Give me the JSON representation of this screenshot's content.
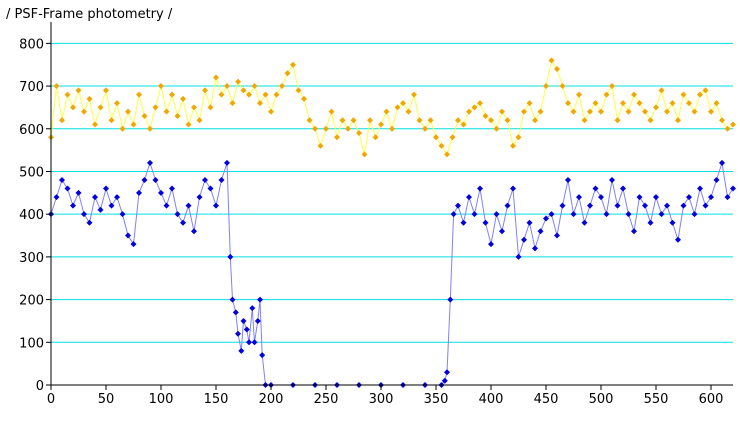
{
  "chart_data": {
    "type": "line",
    "title": "/ PSF-Frame photometry /",
    "xlim": [
      0,
      620
    ],
    "ylim": [
      0,
      850
    ],
    "x_ticks": [
      0,
      50,
      100,
      150,
      200,
      250,
      300,
      350,
      400,
      450,
      500,
      550,
      600
    ],
    "y_ticks": [
      0,
      100,
      200,
      300,
      400,
      500,
      600,
      700,
      800
    ],
    "grid": "horizontal",
    "colors": {
      "gridline": "#00e0e0",
      "yellow_line": "#ffff40",
      "yellow_marker": "#f0a800",
      "blue_line": "#8080ff",
      "blue_marker": "#0000e0"
    },
    "series": [
      {
        "color_key": "yellow",
        "points": [
          [
            0,
            580
          ],
          [
            5,
            700
          ],
          [
            10,
            620
          ],
          [
            15,
            680
          ],
          [
            20,
            650
          ],
          [
            25,
            690
          ],
          [
            30,
            640
          ],
          [
            35,
            670
          ],
          [
            40,
            610
          ],
          [
            45,
            650
          ],
          [
            50,
            690
          ],
          [
            55,
            620
          ],
          [
            60,
            660
          ],
          [
            65,
            600
          ],
          [
            70,
            640
          ],
          [
            75,
            610
          ],
          [
            80,
            680
          ],
          [
            85,
            630
          ],
          [
            90,
            600
          ],
          [
            95,
            650
          ],
          [
            100,
            700
          ],
          [
            105,
            640
          ],
          [
            110,
            680
          ],
          [
            115,
            630
          ],
          [
            120,
            670
          ],
          [
            125,
            610
          ],
          [
            130,
            650
          ],
          [
            135,
            620
          ],
          [
            140,
            690
          ],
          [
            145,
            650
          ],
          [
            150,
            720
          ],
          [
            155,
            680
          ],
          [
            160,
            700
          ],
          [
            165,
            660
          ],
          [
            170,
            710
          ],
          [
            175,
            690
          ],
          [
            180,
            680
          ],
          [
            185,
            700
          ],
          [
            190,
            660
          ],
          [
            195,
            680
          ],
          [
            200,
            640
          ],
          [
            205,
            680
          ],
          [
            210,
            700
          ],
          [
            215,
            730
          ],
          [
            220,
            750
          ],
          [
            225,
            690
          ],
          [
            230,
            670
          ],
          [
            235,
            620
          ],
          [
            240,
            600
          ],
          [
            245,
            560
          ],
          [
            250,
            600
          ],
          [
            255,
            640
          ],
          [
            260,
            580
          ],
          [
            265,
            620
          ],
          [
            270,
            600
          ],
          [
            275,
            620
          ],
          [
            280,
            590
          ],
          [
            285,
            540
          ],
          [
            290,
            620
          ],
          [
            295,
            580
          ],
          [
            300,
            610
          ],
          [
            305,
            640
          ],
          [
            310,
            600
          ],
          [
            315,
            650
          ],
          [
            320,
            660
          ],
          [
            325,
            640
          ],
          [
            330,
            680
          ],
          [
            335,
            620
          ],
          [
            340,
            600
          ],
          [
            345,
            620
          ],
          [
            350,
            580
          ],
          [
            355,
            560
          ],
          [
            360,
            540
          ],
          [
            365,
            580
          ],
          [
            370,
            620
          ],
          [
            375,
            610
          ],
          [
            380,
            640
          ],
          [
            385,
            650
          ],
          [
            390,
            660
          ],
          [
            395,
            630
          ],
          [
            400,
            620
          ],
          [
            405,
            600
          ],
          [
            410,
            640
          ],
          [
            415,
            620
          ],
          [
            420,
            560
          ],
          [
            425,
            580
          ],
          [
            430,
            640
          ],
          [
            435,
            660
          ],
          [
            440,
            620
          ],
          [
            445,
            640
          ],
          [
            450,
            700
          ],
          [
            455,
            760
          ],
          [
            460,
            740
          ],
          [
            465,
            700
          ],
          [
            470,
            660
          ],
          [
            475,
            640
          ],
          [
            480,
            680
          ],
          [
            485,
            620
          ],
          [
            490,
            640
          ],
          [
            495,
            660
          ],
          [
            500,
            640
          ],
          [
            505,
            680
          ],
          [
            510,
            700
          ],
          [
            515,
            620
          ],
          [
            520,
            660
          ],
          [
            525,
            640
          ],
          [
            530,
            680
          ],
          [
            535,
            660
          ],
          [
            540,
            640
          ],
          [
            545,
            620
          ],
          [
            550,
            650
          ],
          [
            555,
            690
          ],
          [
            560,
            640
          ],
          [
            565,
            660
          ],
          [
            570,
            620
          ],
          [
            575,
            680
          ],
          [
            580,
            660
          ],
          [
            585,
            640
          ],
          [
            590,
            680
          ],
          [
            595,
            690
          ],
          [
            600,
            640
          ],
          [
            605,
            660
          ],
          [
            610,
            620
          ],
          [
            615,
            600
          ],
          [
            620,
            610
          ]
        ]
      },
      {
        "color_key": "blue",
        "points": [
          [
            0,
            400
          ],
          [
            5,
            440
          ],
          [
            10,
            480
          ],
          [
            15,
            460
          ],
          [
            20,
            420
          ],
          [
            25,
            450
          ],
          [
            30,
            400
          ],
          [
            35,
            380
          ],
          [
            40,
            440
          ],
          [
            45,
            410
          ],
          [
            50,
            460
          ],
          [
            55,
            420
          ],
          [
            60,
            440
          ],
          [
            65,
            400
          ],
          [
            70,
            350
          ],
          [
            75,
            330
          ],
          [
            80,
            450
          ],
          [
            85,
            480
          ],
          [
            90,
            520
          ],
          [
            95,
            480
          ],
          [
            100,
            450
          ],
          [
            105,
            420
          ],
          [
            110,
            460
          ],
          [
            115,
            400
          ],
          [
            120,
            380
          ],
          [
            125,
            420
          ],
          [
            130,
            360
          ],
          [
            135,
            440
          ],
          [
            140,
            480
          ],
          [
            145,
            460
          ],
          [
            150,
            420
          ],
          [
            155,
            480
          ],
          [
            160,
            520
          ],
          [
            163,
            300
          ],
          [
            165,
            200
          ],
          [
            168,
            170
          ],
          [
            170,
            120
          ],
          [
            173,
            80
          ],
          [
            175,
            150
          ],
          [
            178,
            130
          ],
          [
            180,
            100
          ],
          [
            183,
            180
          ],
          [
            185,
            100
          ],
          [
            188,
            150
          ],
          [
            190,
            200
          ],
          [
            192,
            70
          ],
          [
            195,
            0
          ],
          [
            200,
            0
          ],
          [
            220,
            0
          ],
          [
            240,
            0
          ],
          [
            260,
            0
          ],
          [
            280,
            0
          ],
          [
            300,
            0
          ],
          [
            320,
            0
          ],
          [
            340,
            0
          ],
          [
            355,
            0
          ],
          [
            358,
            10
          ],
          [
            360,
            30
          ],
          [
            363,
            200
          ],
          [
            366,
            400
          ],
          [
            370,
            420
          ],
          [
            375,
            380
          ],
          [
            380,
            440
          ],
          [
            385,
            400
          ],
          [
            390,
            460
          ],
          [
            395,
            380
          ],
          [
            400,
            330
          ],
          [
            405,
            400
          ],
          [
            410,
            360
          ],
          [
            415,
            420
          ],
          [
            420,
            460
          ],
          [
            425,
            300
          ],
          [
            430,
            340
          ],
          [
            435,
            380
          ],
          [
            440,
            320
          ],
          [
            445,
            360
          ],
          [
            450,
            390
          ],
          [
            455,
            400
          ],
          [
            460,
            350
          ],
          [
            465,
            420
          ],
          [
            470,
            480
          ],
          [
            475,
            400
          ],
          [
            480,
            440
          ],
          [
            485,
            380
          ],
          [
            490,
            420
          ],
          [
            495,
            460
          ],
          [
            500,
            440
          ],
          [
            505,
            400
          ],
          [
            510,
            480
          ],
          [
            515,
            420
          ],
          [
            520,
            460
          ],
          [
            525,
            400
          ],
          [
            530,
            360
          ],
          [
            535,
            440
          ],
          [
            540,
            420
          ],
          [
            545,
            380
          ],
          [
            550,
            440
          ],
          [
            555,
            400
          ],
          [
            560,
            420
          ],
          [
            565,
            380
          ],
          [
            570,
            340
          ],
          [
            575,
            420
          ],
          [
            580,
            440
          ],
          [
            585,
            400
          ],
          [
            590,
            460
          ],
          [
            595,
            420
          ],
          [
            600,
            440
          ],
          [
            605,
            480
          ],
          [
            610,
            520
          ],
          [
            615,
            440
          ],
          [
            620,
            460
          ]
        ]
      }
    ]
  }
}
